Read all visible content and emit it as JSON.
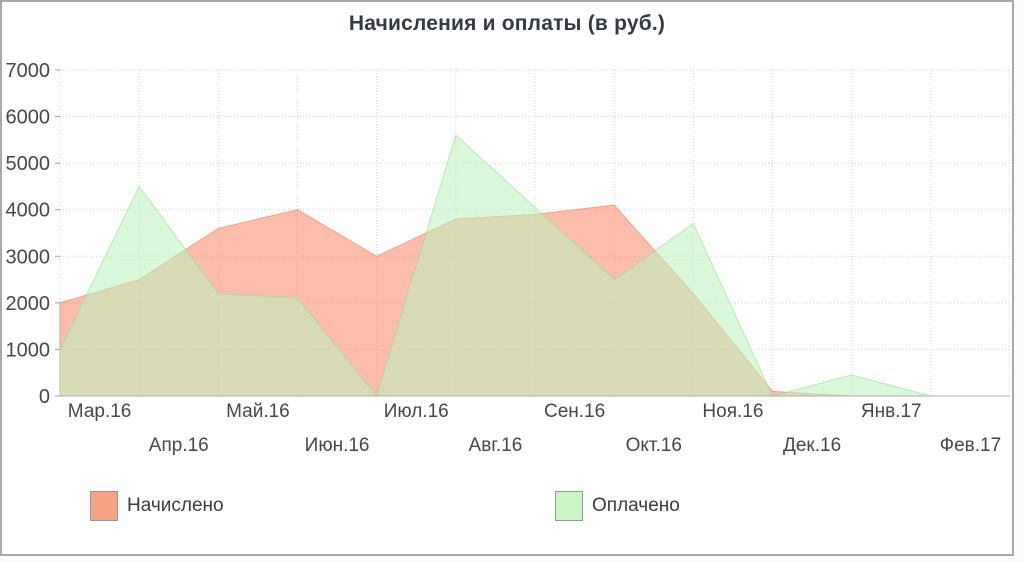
{
  "chart_data": {
    "type": "area",
    "title": "Начисления и оплаты (в руб.)",
    "categories": [
      "Мар.16",
      "Апр.16",
      "Май.16",
      "Июн.16",
      "Июл.16",
      "Авг.16",
      "Сен.16",
      "Окт.16",
      "Ноя.16",
      "Дек.16",
      "Янв.17",
      "Фев.17"
    ],
    "series": [
      {
        "name": "Начислено",
        "values": [
          2000,
          2500,
          3600,
          4000,
          3000,
          3800,
          3900,
          4100,
          2200,
          100,
          0,
          0
        ],
        "fill": "rgba(249,125,85,0.5)",
        "stroke": "rgba(238,115,80,0.55)",
        "legend_color": "#F9A184"
      },
      {
        "name": "Оплачено",
        "values": [
          1000,
          4500,
          2200,
          2100,
          0,
          5600,
          4050,
          2500,
          3700,
          0,
          450,
          0
        ],
        "fill": "rgba(188,242,188,0.55)",
        "stroke": "rgba(150,220,150,0.6)",
        "legend_color": "#C9F6C5"
      }
    ],
    "ylim": [
      0,
      7000
    ],
    "ytick_step": 1000,
    "yticks": [
      "0",
      "1000",
      "2000",
      "3000",
      "4000",
      "5000",
      "6000",
      "7000"
    ],
    "grid": "dotted",
    "grid_color": "#d4d4d4",
    "axis_text_color": "#45474e",
    "legend_position": "bottom"
  }
}
